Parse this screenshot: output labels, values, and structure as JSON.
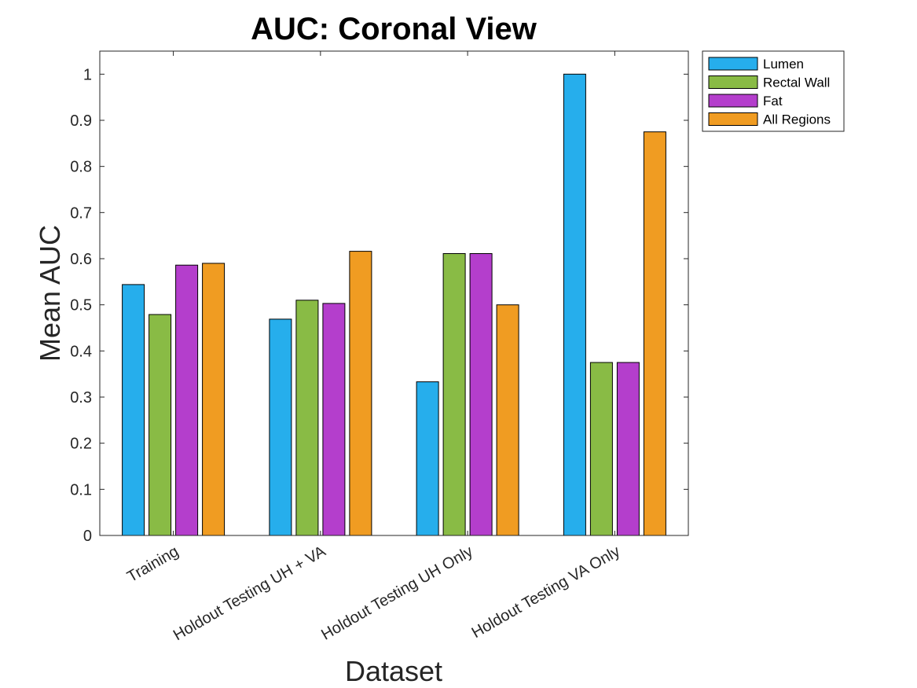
{
  "chart_data": {
    "type": "bar",
    "title": "AUC: Coronal View",
    "xlabel": "Dataset",
    "ylabel": "Mean AUC",
    "categories": [
      "Training",
      "Holdout Testing UH + VA",
      "Holdout Testing UH Only",
      "Holdout Testing VA Only"
    ],
    "series": [
      {
        "name": "Lumen",
        "color": "#26AEEC",
        "values": [
          0.544,
          0.469,
          0.333,
          1.0
        ]
      },
      {
        "name": "Rectal Wall",
        "color": "#89BB45",
        "values": [
          0.479,
          0.51,
          0.611,
          0.375
        ]
      },
      {
        "name": "Fat",
        "color": "#B43ECC",
        "values": [
          0.586,
          0.503,
          0.611,
          0.375
        ]
      },
      {
        "name": "All Regions",
        "color": "#F09C22",
        "values": [
          0.59,
          0.616,
          0.5,
          0.875
        ]
      }
    ],
    "ylim": [
      0,
      1.05
    ],
    "yticks": [
      0,
      0.1,
      0.2,
      0.3,
      0.4,
      0.5,
      0.6,
      0.7,
      0.8,
      0.9,
      1
    ],
    "ytick_labels": [
      "0",
      "0.1",
      "0.2",
      "0.3",
      "0.4",
      "0.5",
      "0.6",
      "0.7",
      "0.8",
      "0.9",
      "1"
    ],
    "grid": false,
    "legend_position": "outside-top-right"
  }
}
